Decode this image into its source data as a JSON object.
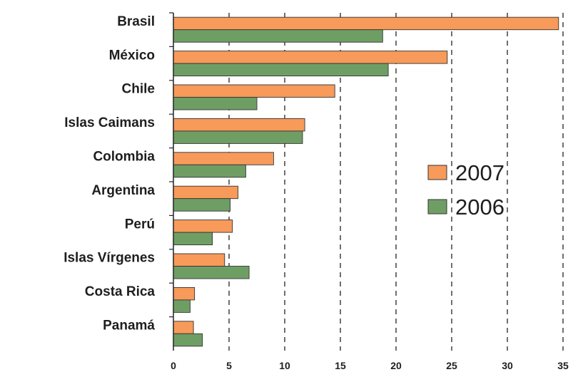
{
  "chart_data": {
    "type": "bar",
    "orientation": "horizontal",
    "categories": [
      "Brasil",
      "México",
      "Chile",
      "Islas Caimans",
      "Colombia",
      "Argentina",
      "Perú",
      "Islas Vírgenes",
      "Costa Rica",
      "Panamá"
    ],
    "series": [
      {
        "name": "2007",
        "color": "#f79a5a",
        "values": [
          34.6,
          24.6,
          14.5,
          11.8,
          9.0,
          5.8,
          5.3,
          4.6,
          1.9,
          1.8
        ]
      },
      {
        "name": "2006",
        "color": "#6f9e65",
        "values": [
          18.8,
          19.3,
          7.5,
          11.6,
          6.5,
          5.1,
          3.5,
          6.8,
          1.5,
          2.6
        ]
      }
    ],
    "xlim": [
      0,
      35
    ],
    "xticks": [
      "0",
      "5",
      "10",
      "15",
      "20",
      "25",
      "30",
      "35"
    ],
    "grid": "vertical dashed",
    "legend_position": "right-middle"
  }
}
